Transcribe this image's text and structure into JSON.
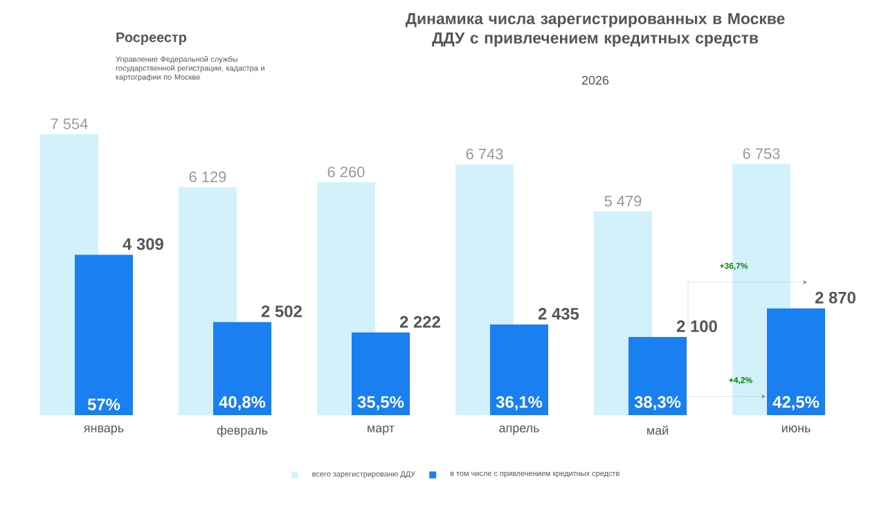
{
  "chart_data": {
    "type": "bar",
    "title": "Динамика числа зарегистрированных в Москве ДДУ с привлечением кредитных средств",
    "subtitle": "2026",
    "categories": [
      "январь",
      "февраль",
      "март",
      "апрель",
      "май",
      "июнь"
    ],
    "series": [
      {
        "name": "всего зарегистрированю ДДУ",
        "color": "#d3f1fa",
        "values": [
          7554,
          6129,
          6260,
          6743,
          5479,
          6753
        ],
        "value_labels": [
          "7 554",
          "6 129",
          "6 260",
          "6 743",
          "5 479",
          "6 753"
        ]
      },
      {
        "name": "в том числе с привлечением кредитных средств",
        "color": "#1a7ff0",
        "values": [
          4309,
          2502,
          2222,
          2435,
          2100,
          2870
        ],
        "value_labels": [
          "4 309",
          "2 502",
          "2 222",
          "2 435",
          "2 100",
          "2 870"
        ]
      }
    ],
    "annotations": [
      "Росреестр",
      "Управление Федеральной службы государственной регистрации, кадастра и картографии по Москве",
      "+36,7%",
      "+4,2%",
      "57%",
      "40,8%",
      "35,5%",
      "36,1%",
      "38,3%",
      "42,5%"
    ],
    "legend": "bottom"
  }
}
